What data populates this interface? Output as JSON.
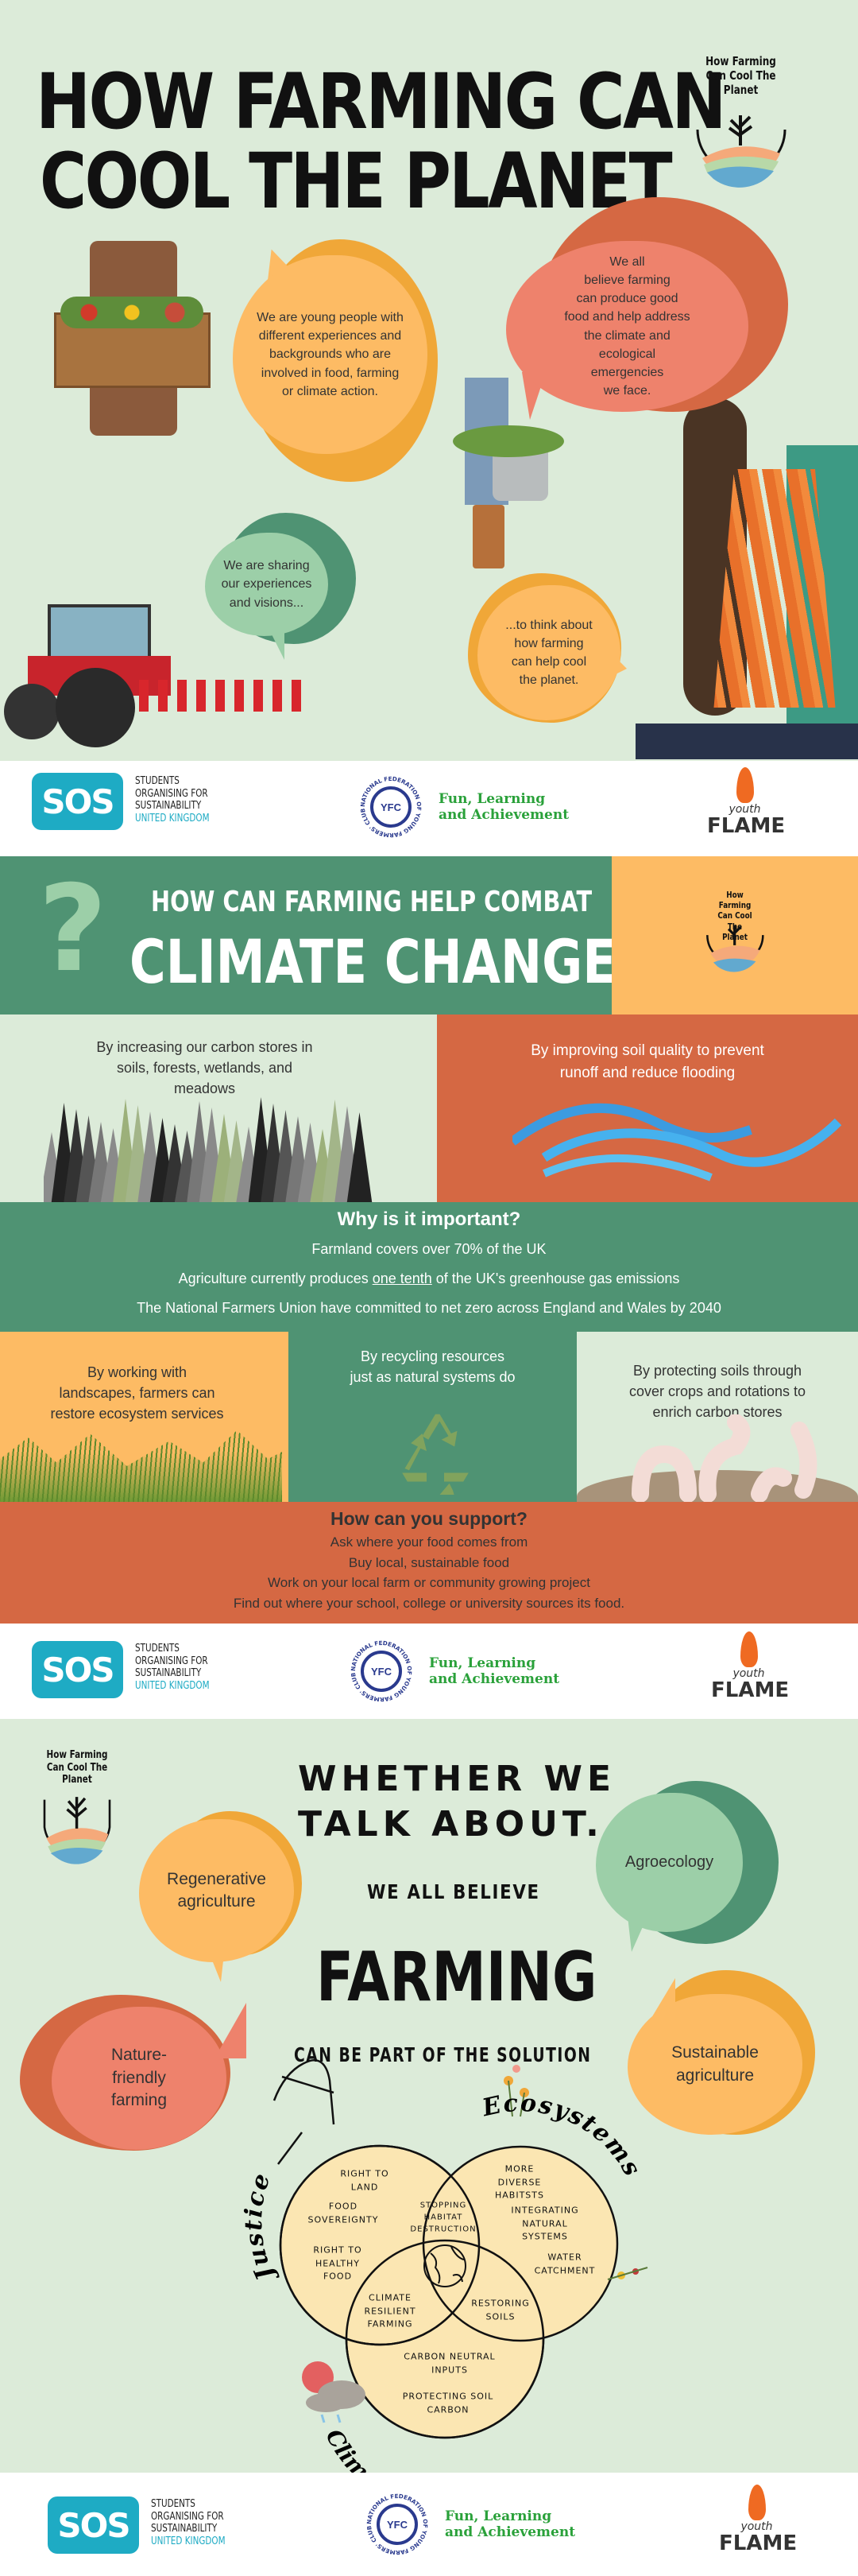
{
  "section1": {
    "title_line1": "HOW FARMING CAN",
    "title_line2": "COOL THE PLANET",
    "logo_text": "How Farming\nCan Cool The\nPlanet",
    "bubble_young": "We are young people with\ndifferent experiences and\nbackgrounds who are\ninvolved in food, farming\nor climate action.",
    "bubble_believe": "We all\nbelieve farming\ncan produce good\nfood and help address\nthe climate and\necological\nemergencies\nwe face.",
    "bubble_sharing": "We are sharing\nour experiences\nand visions...",
    "bubble_think": "...to think about\nhow farming\ncan help cool\nthe planet."
  },
  "partners": {
    "sos_mark": "SOS",
    "sos_text": "STUDENTS\nORGANISING FOR\nSUSTAINABILITY",
    "sos_country": "UNITED KINGDOM",
    "nfyfc_mark": "YFC",
    "nfyfc_ring": "NATIONAL FEDERATION OF YOUNG FARMERS' CLUBS",
    "nfyfc_slogan": "Fun, Learning\nand Achievement",
    "flame_top": "youth",
    "flame_main": "FLAME"
  },
  "section2": {
    "question_mark": "?",
    "heading_small": "HOW CAN FARMING HELP COMBAT",
    "heading_big": "CLIMATE CHANGE",
    "logo_text": "How Farming\nCan Cool The\nPlanet",
    "carbon_stores": "By increasing our carbon stores in\nsoils, forests, wetlands, and\nmeadows",
    "soil_quality": "By improving soil quality to prevent\nrunoff and reduce flooding",
    "why_title": "Why is it important?",
    "why_1": "Farmland covers over 70% of the UK",
    "why_2_pre": "Agriculture currently produces ",
    "why_2_link": "one tenth",
    "why_2_post": " of the UK's greenhouse gas emissions",
    "why_3": "The National Farmers Union have committed to net zero across England and Wales by 2040",
    "landscapes": "By working with\nlandscapes, farmers can\nrestore ecosystem services",
    "recycling": "By recycling resources\njust as natural systems do",
    "protecting": "By protecting soils through\ncover crops and rotations to\nenrich carbon stores",
    "support_title": "How can you support?",
    "support_items": [
      "Ask where your food comes from",
      "Buy local, sustainable food",
      "Work on your local farm or community growing project",
      "Find out where your school, college or university sources its food."
    ]
  },
  "section3": {
    "logo_text": "How Farming\nCan Cool The\nPlanet",
    "whether": "WHETHER WE",
    "talk": "TALK ABOUT...",
    "we_all_believe": "WE ALL BELIEVE",
    "farming": "FARMING",
    "solution": "CAN BE PART OF THE SOLUTION",
    "bubble_regen": "Regenerative\nagriculture",
    "bubble_agro": "Agroecology",
    "bubble_nature": "Nature-\nfriendly\nfarming",
    "bubble_sustainable": "Sustainable\nagriculture",
    "venn": {
      "justice": "Justice",
      "ecosystems": "Ecosystems",
      "climate": "Climate mitigation",
      "right_to_land": "RIGHT TO\nLAND",
      "food_sovereignty": "FOOD\nSOVEREIGNTY",
      "healthy_food": "RIGHT TO\nHEALTHY\nFOOD",
      "stopping_habitat": "STOPPING\nHABITAT\nDESTRUCTION",
      "diverse_habitats": "MORE\nDIVERSE\nHABITSTS",
      "integrating": "INTEGRATING\nNATURAL\nSYSTEMS",
      "water": "WATER\nCATCHMENT",
      "climate_resilient": "CLIMATE\nRESILIENT\nFARMING",
      "restoring_soils": "RESTORING\nSOILS",
      "carbon_neutral": "CARBON NEUTRAL\nINPUTS",
      "protecting_soil": "PROTECTING SOIL\nCARBON"
    }
  },
  "colors": {
    "background": "#dcebd9",
    "green": "#4f9373",
    "light_green": "#9ccfa8",
    "orange": "#fdbb64",
    "dark_orange": "#f0a738",
    "coral": "#d56843",
    "salmon": "#ee826c",
    "venn_fill": "#fbe6b2",
    "partner_green": "#2aa13a",
    "sos_blue": "#1eabc4"
  }
}
